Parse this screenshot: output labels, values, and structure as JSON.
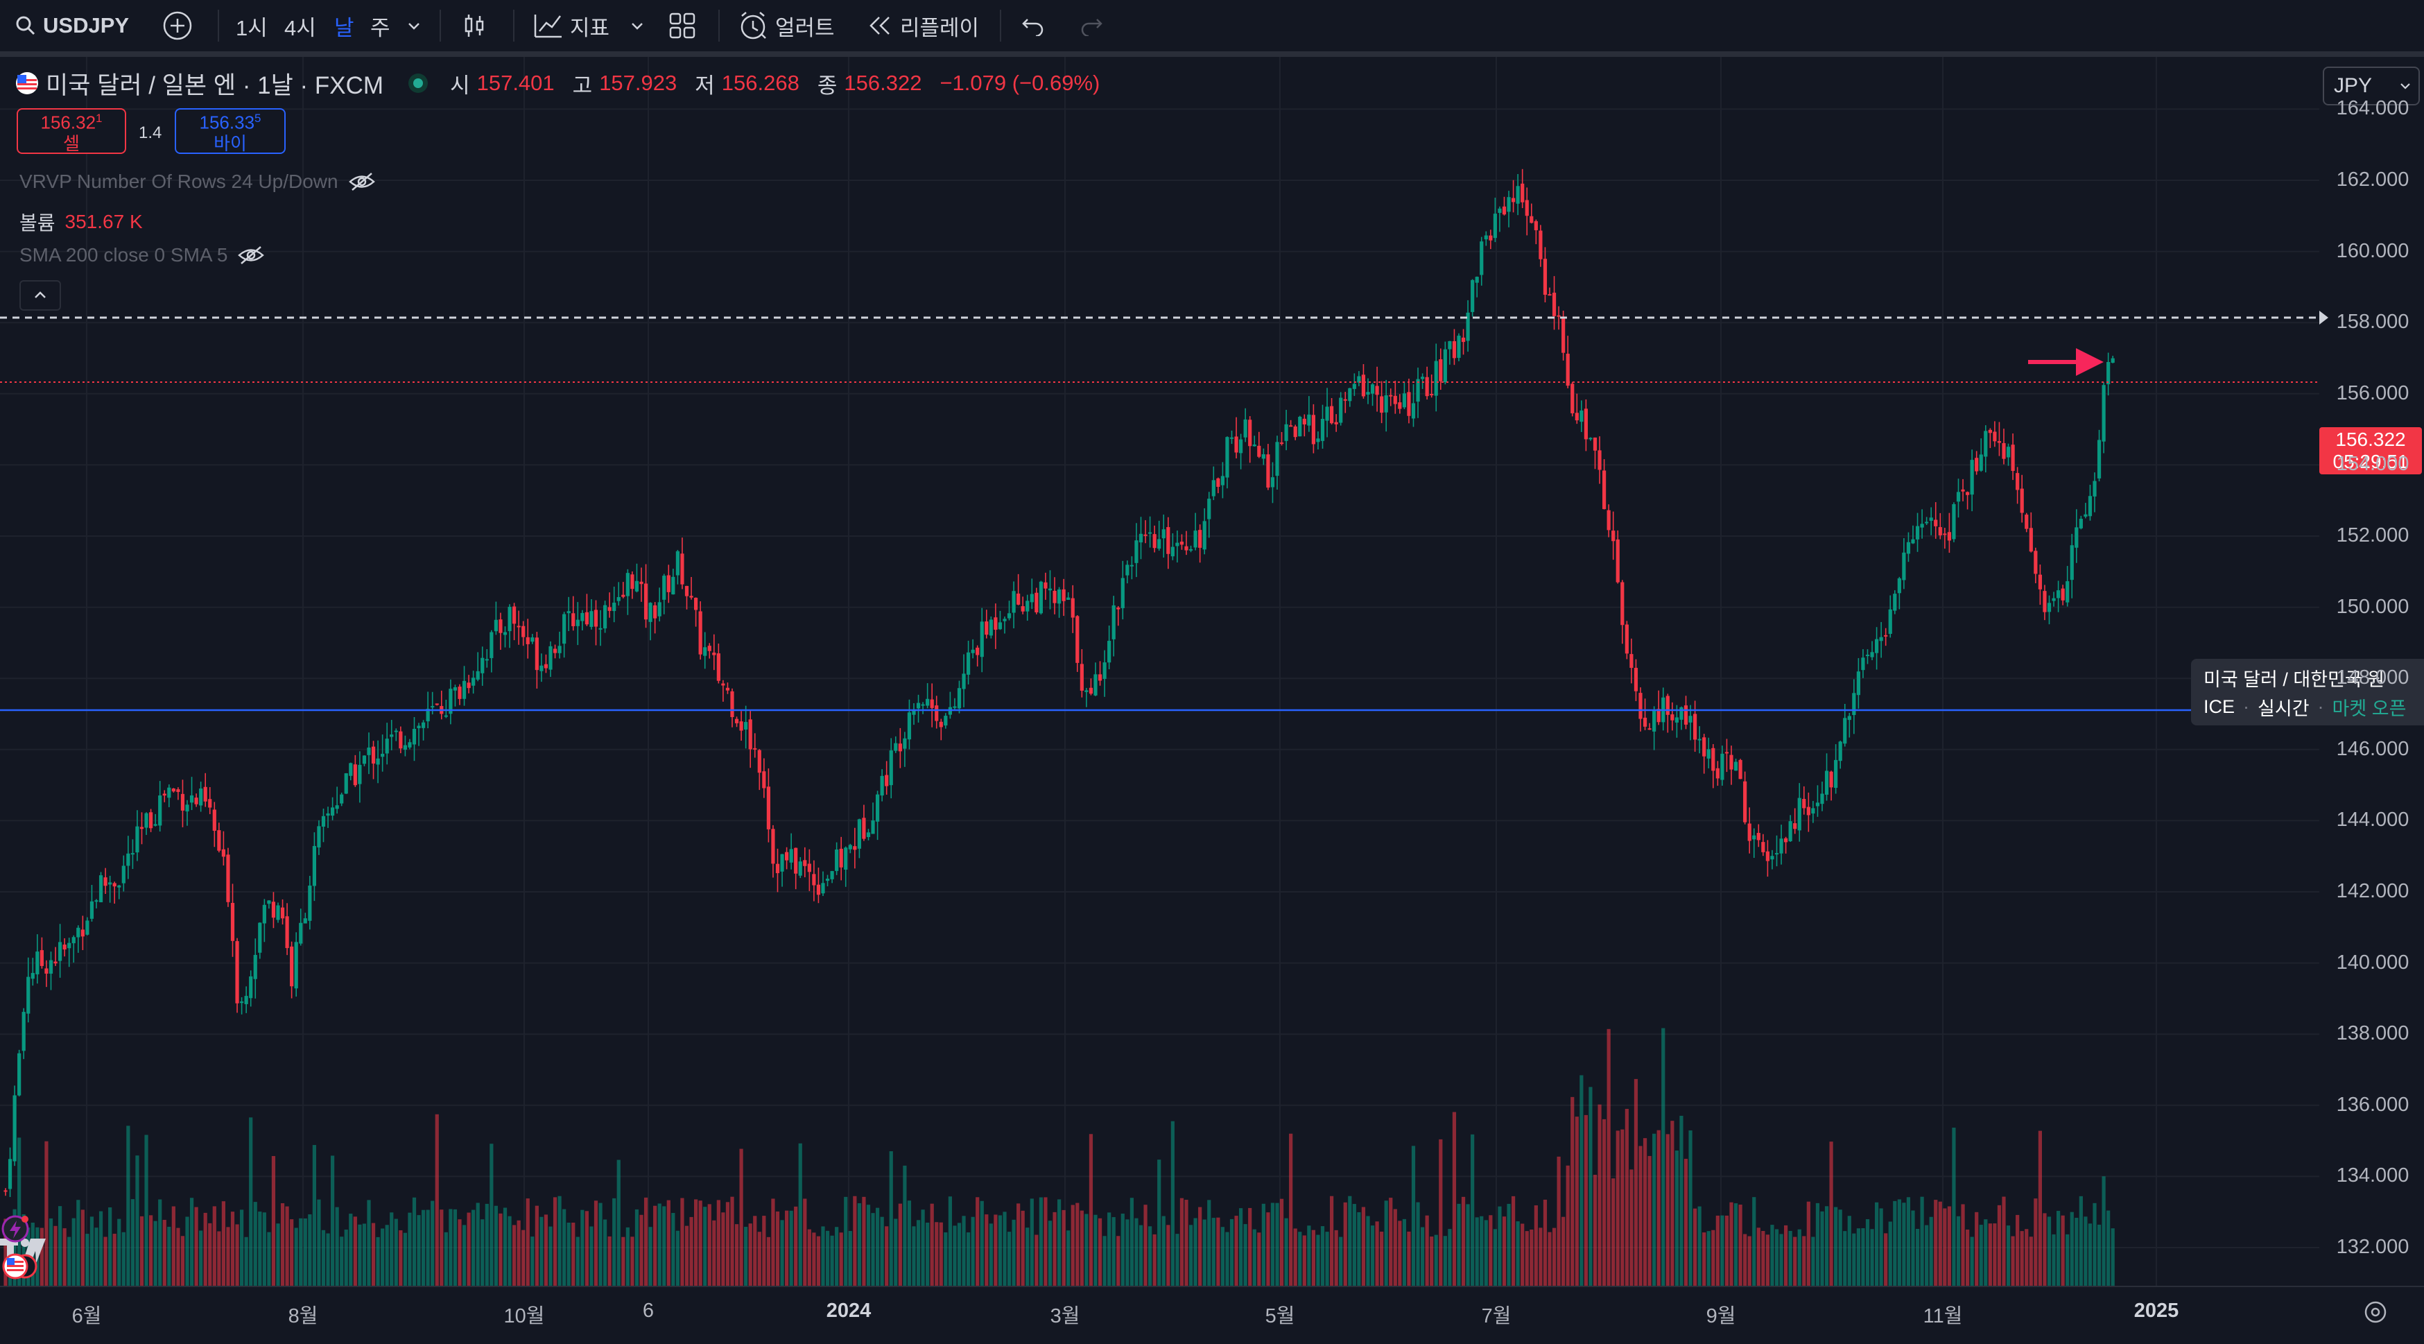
{
  "toolbar": {
    "symbol": "USDJPY",
    "intervals": [
      "1시",
      "4시",
      "날",
      "주"
    ],
    "active_interval": "날",
    "indicators_label": "지표",
    "alerts_label": "얼러트",
    "replay_label": "리플레이"
  },
  "legend": {
    "title": "미국 달러 / 일본 엔 · 1날 · FXCM",
    "open_label": "시",
    "open": "157.401",
    "high_label": "고",
    "high": "157.923",
    "low_label": "저",
    "low": "156.268",
    "close_label": "종",
    "close": "156.322",
    "change": "−1.079 (−0.69%)"
  },
  "trade": {
    "sell_price": "156.32",
    "sell_price_sup": "1",
    "sell_label": "셀",
    "spread": "1.4",
    "buy_price": "156.33",
    "buy_price_sup": "5",
    "buy_label": "바이"
  },
  "indicators": {
    "vrvp": "VRVP Number Of Rows 24 Up/Down",
    "volume_label": "볼륨",
    "volume_value": "351.67 K",
    "sma": "SMA 200 close 0 SMA 5"
  },
  "currency": "JPY",
  "price_axis": [
    "164.000",
    "162.000",
    "160.000",
    "158.000",
    "156.000",
    "154.000",
    "152.000",
    "150.000",
    "148.000",
    "146.000",
    "144.000",
    "142.000",
    "140.000",
    "138.000",
    "136.000",
    "134.000",
    "132.000"
  ],
  "price_tag": {
    "price": "156.322",
    "countdown": "05:29:51"
  },
  "tooltip": {
    "title": "미국 달러 / 대한민국 원",
    "exchange": "ICE",
    "realtime": "실시간",
    "market": "마켓 오픈"
  },
  "time_axis": [
    "6월",
    "8월",
    "10월",
    "6",
    "2024",
    "3월",
    "5월",
    "7월",
    "9월",
    "11월",
    "2025"
  ],
  "colors": {
    "up": "#089981",
    "down": "#f23645",
    "accent": "#2962ff",
    "background": "#131722"
  },
  "icons": [
    "search-icon",
    "plus-circle-icon",
    "chevron-down-icon",
    "candles-icon",
    "indicators-icon",
    "layout-grid-icon",
    "alarm-clock-icon",
    "replay-icon",
    "undo-icon",
    "redo-icon",
    "eye-off-icon",
    "chevron-up-icon",
    "settings-icon",
    "tradingview-logo",
    "lightning-icon",
    "us-flag-icon"
  ]
}
